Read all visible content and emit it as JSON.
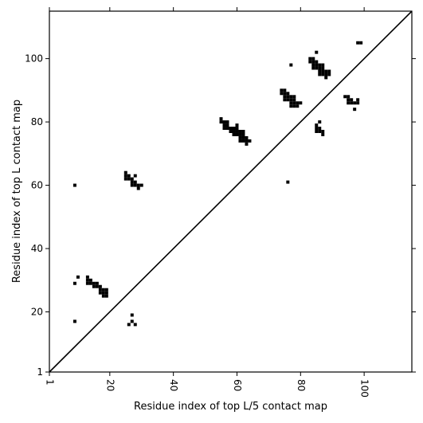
{
  "chart_data": {
    "type": "heatmap",
    "title": "",
    "xlabel": "Residue index of top L/5 contact map",
    "ylabel": "Residue index of top L contact map",
    "xlim": [
      1,
      115
    ],
    "ylim": [
      1,
      115
    ],
    "x_ticks": [
      1,
      20,
      40,
      60,
      80,
      100
    ],
    "y_ticks": [
      1,
      20,
      40,
      60,
      80,
      100
    ],
    "x_tick_labels": [
      "1",
      "20",
      "40",
      "60",
      "80",
      "100"
    ],
    "y_tick_labels": [
      "1",
      "20",
      "40",
      "60",
      "80",
      "100"
    ],
    "grid": false,
    "diagonal_line": true,
    "colors": {
      "contact": "#000000",
      "background": "#ffffff"
    },
    "contacts": [
      [
        9,
        60
      ],
      [
        9,
        29
      ],
      [
        9,
        17
      ],
      [
        10,
        31
      ],
      [
        13,
        31
      ],
      [
        13,
        30
      ],
      [
        13,
        29
      ],
      [
        14,
        30
      ],
      [
        14,
        29
      ],
      [
        15,
        29
      ],
      [
        15,
        28
      ],
      [
        16,
        29
      ],
      [
        16,
        28
      ],
      [
        17,
        28
      ],
      [
        17,
        27
      ],
      [
        17,
        26
      ],
      [
        18,
        27
      ],
      [
        18,
        26
      ],
      [
        18,
        25
      ],
      [
        19,
        27
      ],
      [
        19,
        26
      ],
      [
        19,
        25
      ],
      [
        25,
        64
      ],
      [
        25,
        63
      ],
      [
        25,
        62
      ],
      [
        26,
        63
      ],
      [
        26,
        62
      ],
      [
        27,
        62
      ],
      [
        27,
        61
      ],
      [
        27,
        60
      ],
      [
        28,
        63
      ],
      [
        28,
        61
      ],
      [
        28,
        60
      ],
      [
        29,
        60
      ],
      [
        29,
        59
      ],
      [
        30,
        60
      ],
      [
        26,
        16
      ],
      [
        27,
        17
      ],
      [
        27,
        19
      ],
      [
        28,
        16
      ],
      [
        55,
        81
      ],
      [
        55,
        80
      ],
      [
        56,
        80
      ],
      [
        56,
        79
      ],
      [
        56,
        78
      ],
      [
        57,
        80
      ],
      [
        57,
        79
      ],
      [
        57,
        78
      ],
      [
        58,
        78
      ],
      [
        58,
        77
      ],
      [
        59,
        78
      ],
      [
        59,
        77
      ],
      [
        59,
        76
      ],
      [
        60,
        79
      ],
      [
        60,
        78
      ],
      [
        60,
        77
      ],
      [
        60,
        76
      ],
      [
        61,
        77
      ],
      [
        61,
        76
      ],
      [
        61,
        75
      ],
      [
        61,
        74
      ],
      [
        62,
        77
      ],
      [
        62,
        76
      ],
      [
        62,
        75
      ],
      [
        62,
        74
      ],
      [
        63,
        75
      ],
      [
        63,
        74
      ],
      [
        63,
        73
      ],
      [
        64,
        74
      ],
      [
        74,
        90
      ],
      [
        74,
        89
      ],
      [
        75,
        90
      ],
      [
        75,
        89
      ],
      [
        75,
        88
      ],
      [
        75,
        87
      ],
      [
        76,
        89
      ],
      [
        76,
        88
      ],
      [
        76,
        87
      ],
      [
        76,
        61
      ],
      [
        77,
        98
      ],
      [
        77,
        88
      ],
      [
        77,
        87
      ],
      [
        77,
        86
      ],
      [
        77,
        85
      ],
      [
        78,
        88
      ],
      [
        78,
        87
      ],
      [
        78,
        86
      ],
      [
        78,
        85
      ],
      [
        79,
        86
      ],
      [
        79,
        85
      ],
      [
        80,
        86
      ],
      [
        83,
        100
      ],
      [
        83,
        99
      ],
      [
        84,
        100
      ],
      [
        84,
        99
      ],
      [
        84,
        98
      ],
      [
        84,
        97
      ],
      [
        85,
        102
      ],
      [
        85,
        99
      ],
      [
        85,
        98
      ],
      [
        85,
        97
      ],
      [
        85,
        79
      ],
      [
        85,
        78
      ],
      [
        85,
        77
      ],
      [
        86,
        98
      ],
      [
        86,
        97
      ],
      [
        86,
        96
      ],
      [
        86,
        95
      ],
      [
        86,
        80
      ],
      [
        86,
        78
      ],
      [
        86,
        77
      ],
      [
        87,
        98
      ],
      [
        87,
        97
      ],
      [
        87,
        96
      ],
      [
        87,
        95
      ],
      [
        87,
        77
      ],
      [
        87,
        76
      ],
      [
        88,
        96
      ],
      [
        88,
        95
      ],
      [
        88,
        94
      ],
      [
        89,
        96
      ],
      [
        89,
        95
      ],
      [
        94,
        88
      ],
      [
        95,
        88
      ],
      [
        95,
        87
      ],
      [
        95,
        86
      ],
      [
        96,
        87
      ],
      [
        96,
        86
      ],
      [
        97,
        86
      ],
      [
        97,
        84
      ],
      [
        98,
        105
      ],
      [
        98,
        87
      ],
      [
        98,
        86
      ],
      [
        99,
        105
      ]
    ]
  }
}
